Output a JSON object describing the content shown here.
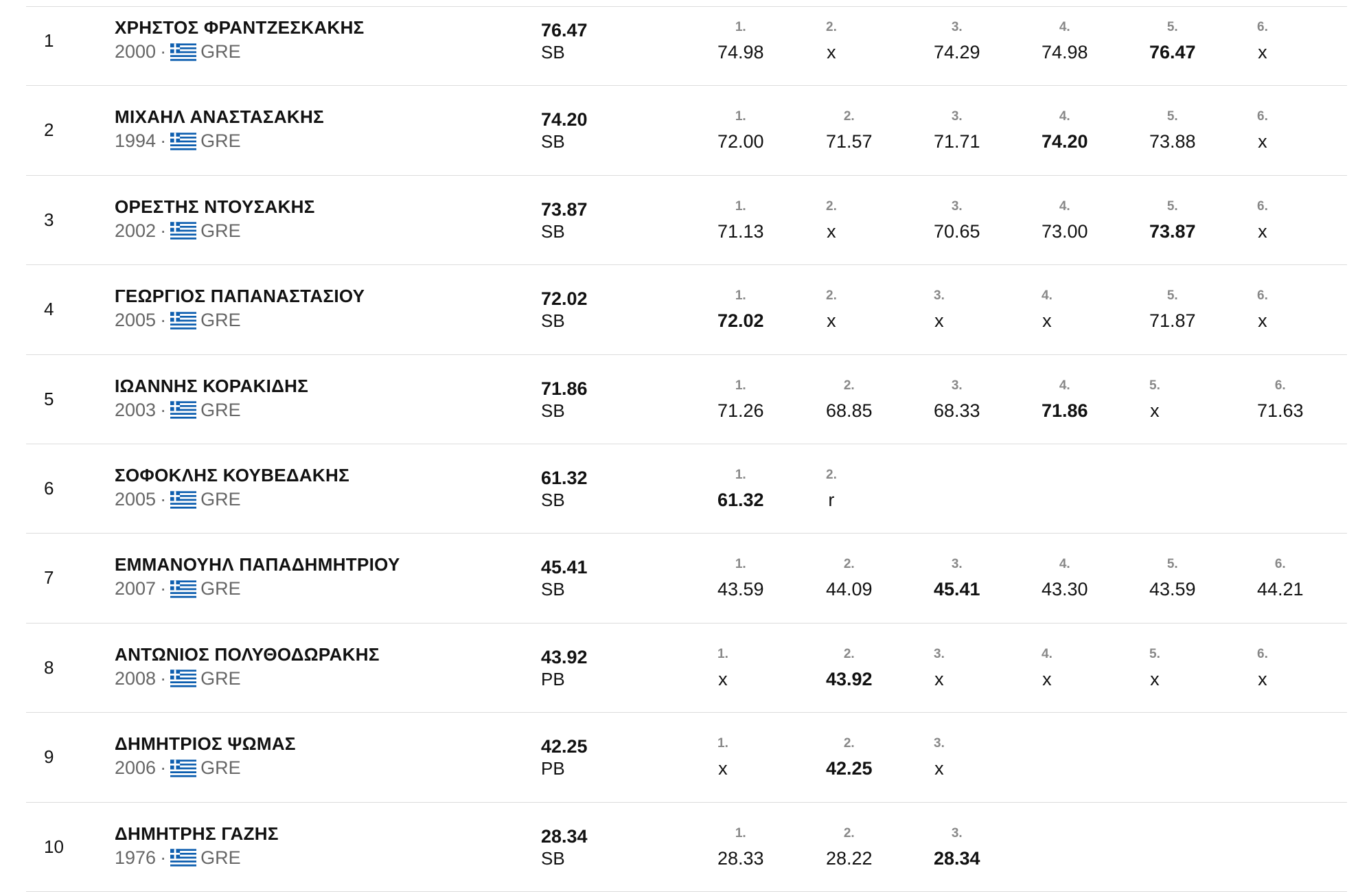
{
  "separator": "·",
  "rows": [
    {
      "rank": "1",
      "name": "ΧΡΗΣΤΟΣ ΦΡΑΝΤΖΕΣΚΑΚΗΣ",
      "year": "2000",
      "country": "GRE",
      "mark": "76.47",
      "note": "SB",
      "best": 4,
      "attempts": [
        [
          "1.",
          "74.98"
        ],
        [
          "2.",
          "x"
        ],
        [
          "3.",
          "74.29"
        ],
        [
          "4.",
          "74.98"
        ],
        [
          "5.",
          "76.47"
        ],
        [
          "6.",
          "x"
        ]
      ]
    },
    {
      "rank": "2",
      "name": "ΜΙΧΑΗΛ ΑΝΑΣΤΑΣΑΚΗΣ",
      "year": "1994",
      "country": "GRE",
      "mark": "74.20",
      "note": "SB",
      "best": 3,
      "attempts": [
        [
          "1.",
          "72.00"
        ],
        [
          "2.",
          "71.57"
        ],
        [
          "3.",
          "71.71"
        ],
        [
          "4.",
          "74.20"
        ],
        [
          "5.",
          "73.88"
        ],
        [
          "6.",
          "x"
        ]
      ]
    },
    {
      "rank": "3",
      "name": "ΟΡΕΣΤΗΣ ΝΤΟΥΣΑΚΗΣ",
      "year": "2002",
      "country": "GRE",
      "mark": "73.87",
      "note": "SB",
      "best": 4,
      "attempts": [
        [
          "1.",
          "71.13"
        ],
        [
          "2.",
          "x"
        ],
        [
          "3.",
          "70.65"
        ],
        [
          "4.",
          "73.00"
        ],
        [
          "5.",
          "73.87"
        ],
        [
          "6.",
          "x"
        ]
      ]
    },
    {
      "rank": "4",
      "name": "ΓΕΩΡΓΙΟΣ ΠΑΠΑΝΑΣΤΑΣΙΟΥ",
      "year": "2005",
      "country": "GRE",
      "mark": "72.02",
      "note": "SB",
      "best": 0,
      "attempts": [
        [
          "1.",
          "72.02"
        ],
        [
          "2.",
          "x"
        ],
        [
          "3.",
          "x"
        ],
        [
          "4.",
          "x"
        ],
        [
          "5.",
          "71.87"
        ],
        [
          "6.",
          "x"
        ]
      ]
    },
    {
      "rank": "5",
      "name": "ΙΩΑΝΝΗΣ ΚΟΡΑΚΙΔΗΣ",
      "year": "2003",
      "country": "GRE",
      "mark": "71.86",
      "note": "SB",
      "best": 3,
      "attempts": [
        [
          "1.",
          "71.26"
        ],
        [
          "2.",
          "68.85"
        ],
        [
          "3.",
          "68.33"
        ],
        [
          "4.",
          "71.86"
        ],
        [
          "5.",
          "x"
        ],
        [
          "6.",
          "71.63"
        ]
      ]
    },
    {
      "rank": "6",
      "name": "ΣΟΦΟΚΛΗΣ ΚΟΥΒΕΔΑΚΗΣ",
      "year": "2005",
      "country": "GRE",
      "mark": "61.32",
      "note": "SB",
      "best": 0,
      "attempts": [
        [
          "1.",
          "61.32"
        ],
        [
          "2.",
          "r"
        ]
      ]
    },
    {
      "rank": "7",
      "name": "ΕΜΜΑΝΟΥΗΛ ΠΑΠΑΔΗΜΗΤΡΙΟΥ",
      "year": "2007",
      "country": "GRE",
      "mark": "45.41",
      "note": "SB",
      "best": 2,
      "attempts": [
        [
          "1.",
          "43.59"
        ],
        [
          "2.",
          "44.09"
        ],
        [
          "3.",
          "45.41"
        ],
        [
          "4.",
          "43.30"
        ],
        [
          "5.",
          "43.59"
        ],
        [
          "6.",
          "44.21"
        ]
      ]
    },
    {
      "rank": "8",
      "name": "ΑΝΤΩΝΙΟΣ ΠΟΛΥΘΟΔΩΡΑΚΗΣ",
      "year": "2008",
      "country": "GRE",
      "mark": "43.92",
      "note": "PB",
      "best": 1,
      "attempts": [
        [
          "1.",
          "x"
        ],
        [
          "2.",
          "43.92"
        ],
        [
          "3.",
          "x"
        ],
        [
          "4.",
          "x"
        ],
        [
          "5.",
          "x"
        ],
        [
          "6.",
          "x"
        ]
      ]
    },
    {
      "rank": "9",
      "name": "ΔΗΜΗΤΡΙΟΣ ΨΩΜΑΣ",
      "year": "2006",
      "country": "GRE",
      "mark": "42.25",
      "note": "PB",
      "best": 1,
      "attempts": [
        [
          "1.",
          "x"
        ],
        [
          "2.",
          "42.25"
        ],
        [
          "3.",
          "x"
        ]
      ]
    },
    {
      "rank": "10",
      "name": "ΔΗΜΗΤΡΗΣ ΓΑΖΗΣ",
      "year": "1976",
      "country": "GRE",
      "mark": "28.34",
      "note": "SB",
      "best": 2,
      "attempts": [
        [
          "1.",
          "28.33"
        ],
        [
          "2.",
          "28.22"
        ],
        [
          "3.",
          "28.34"
        ]
      ]
    }
  ]
}
